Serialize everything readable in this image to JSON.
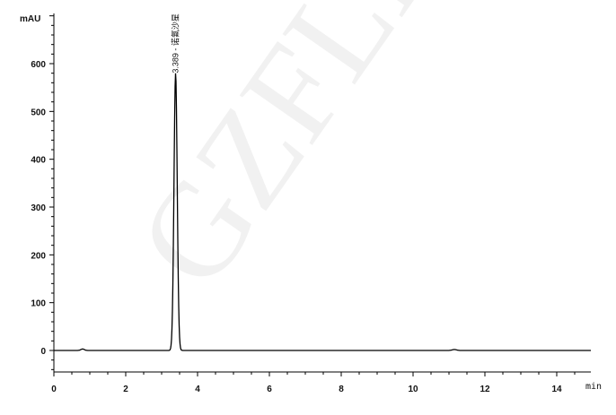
{
  "chart_data": {
    "type": "line",
    "title": "",
    "xlabel": "min",
    "ylabel": "mAU",
    "xlim": [
      0,
      14.95
    ],
    "ylim": [
      -45,
      705
    ],
    "x_ticks": [
      0,
      2,
      4,
      6,
      8,
      10,
      12,
      14
    ],
    "y_ticks": [
      0,
      100,
      200,
      300,
      400,
      500,
      600
    ],
    "grid": false,
    "legend": "none",
    "line_color": "#000000",
    "peaks": [
      {
        "retention_time": 3.389,
        "height": 580,
        "width_sigma": 0.045,
        "label": "3.389 - 诺氟沙星"
      },
      {
        "retention_time": 0.8,
        "height": 3,
        "width_sigma": 0.05,
        "label": ""
      },
      {
        "retention_time": 11.15,
        "height": 2,
        "width_sigma": 0.06,
        "label": ""
      }
    ],
    "watermark": "GZFLM"
  }
}
